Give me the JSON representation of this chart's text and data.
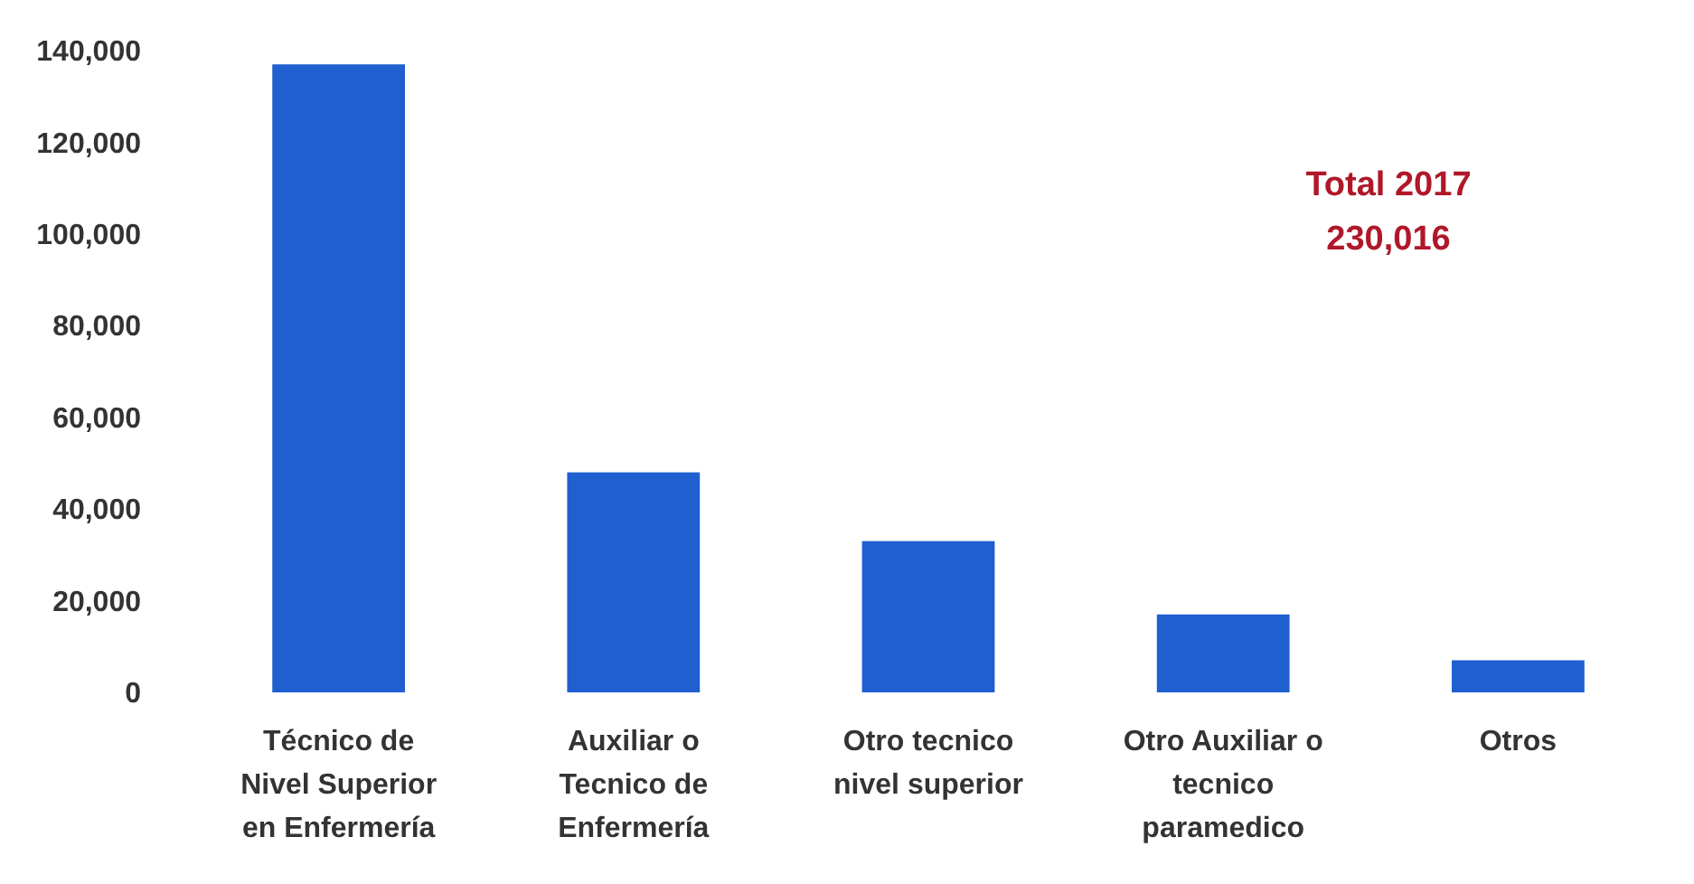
{
  "chart_data": {
    "type": "bar",
    "categories": [
      "Técnico de Nivel Superior en Enfermería",
      "Auxiliar o Tecnico de Enfermería",
      "Otro tecnico nivel superior",
      "Otro Auxiliar o tecnico paramedico",
      "Otros"
    ],
    "values": [
      137000,
      48000,
      33000,
      17000,
      7000
    ],
    "color": "#1f5fd0",
    "ylim": [
      0,
      140000
    ],
    "yticks": [
      {
        "value": 0,
        "label": "0"
      },
      {
        "value": 20000,
        "label": "20,000"
      },
      {
        "value": 40000,
        "label": "40,000"
      },
      {
        "value": 60000,
        "label": "60,000"
      },
      {
        "value": 80000,
        "label": "80,000"
      },
      {
        "value": 100000,
        "label": "100,000"
      },
      {
        "value": 120000,
        "label": "120,000"
      },
      {
        "value": 140000,
        "label": "140,000"
      }
    ],
    "annotations": [
      "Total 2017",
      "230,016"
    ],
    "grid": false
  }
}
